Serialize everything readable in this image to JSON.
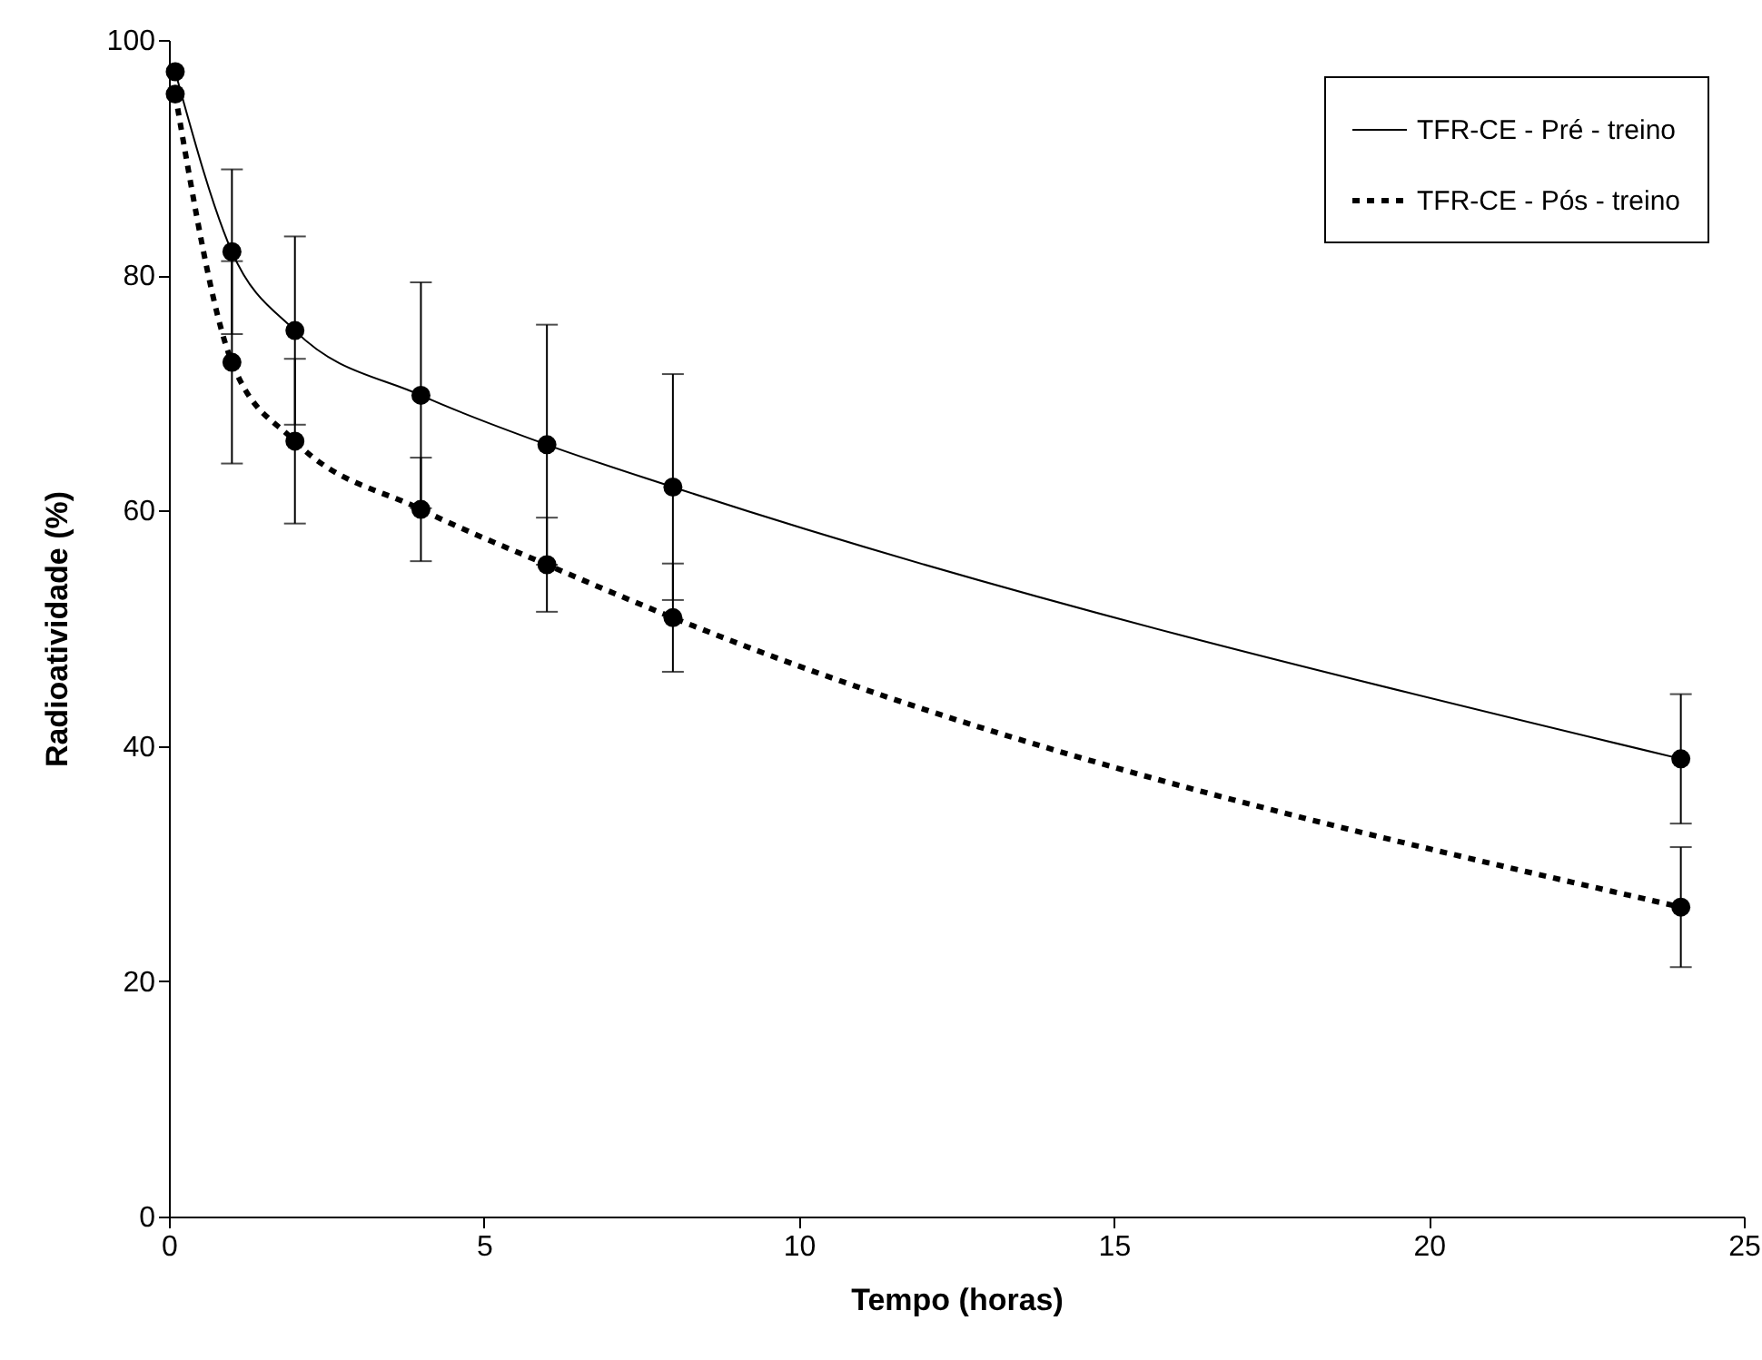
{
  "chart_data": {
    "type": "line",
    "xlabel": "Tempo (horas)",
    "ylabel": "Radioatividade (%)",
    "x": [
      0.1,
      1,
      2,
      4,
      6,
      8,
      24
    ],
    "series": [
      {
        "name": "TFR-CE - Pré - treino",
        "color": "#000000",
        "line_style": "solid",
        "values": [
          97.3,
          82.0,
          75.3,
          69.8,
          65.6,
          62.0,
          38.9
        ],
        "errors": [
          null,
          7.0,
          8.0,
          9.6,
          10.2,
          9.6,
          5.5
        ]
      },
      {
        "name": "TFR-CE - Pós - treino",
        "color": "#000000",
        "line_style": "dotted",
        "values": [
          95.4,
          72.6,
          65.9,
          60.1,
          55.4,
          50.9,
          26.3
        ],
        "errors": [
          null,
          8.6,
          7.0,
          4.4,
          4.0,
          4.6,
          5.1
        ]
      }
    ],
    "xlim": [
      0,
      25
    ],
    "xticks": [
      0,
      5,
      10,
      15,
      20,
      25
    ],
    "ylim": [
      0,
      100
    ],
    "yticks": [
      0,
      20,
      40,
      60,
      80,
      100
    ],
    "grid": false,
    "legend": "top right",
    "marker": "circle"
  }
}
